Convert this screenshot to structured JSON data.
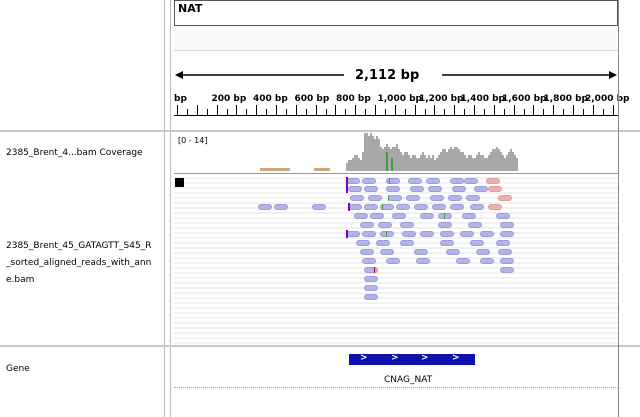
{
  "locus": {
    "chromosome": "NAT",
    "span_label": "2,112 bp",
    "ticks": [
      "bp",
      "200 bp",
      "400 bp",
      "600 bp",
      "800 bp",
      "1,000 bp",
      "1,200 bp",
      "1,400 bp",
      "1,600 bp",
      "1,800 bp",
      "2,000 bp"
    ]
  },
  "tracks": {
    "coverage": {
      "name": "2385_Brent_4...bam Coverage",
      "range": "[0 - 14]"
    },
    "alignment": {
      "name_lines": [
        "2385_Brent_45_GATAGTT_S45_R",
        "_sorted_aligned_reads_with_ann",
        "e.bam"
      ]
    },
    "gene": {
      "name": "Gene",
      "feature": "CNAG_NAT",
      "strand_glyphs": [
        ">",
        ">",
        ">",
        ">"
      ],
      "color": "#0f10b0"
    }
  },
  "colors": {
    "read": "#b3b3e6",
    "read_pink": "#e8b0b0",
    "coverage": "#a8a8a8",
    "insertion": "#8000c0"
  }
}
